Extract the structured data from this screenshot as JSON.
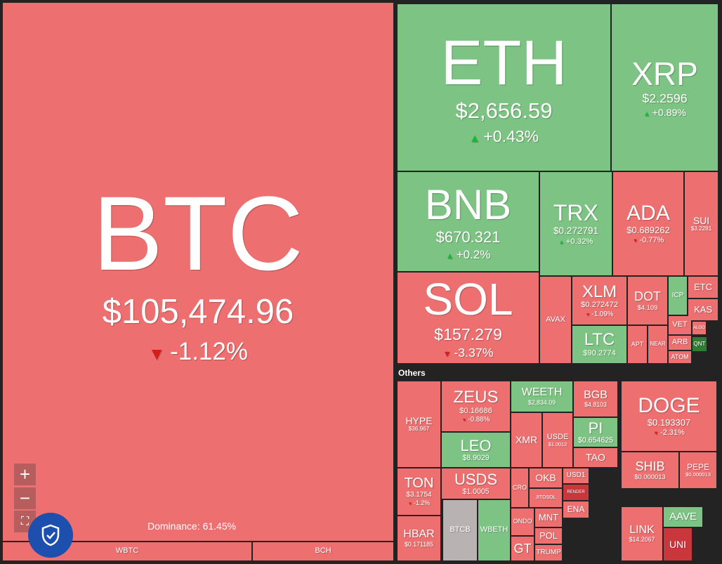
{
  "heatmap": {
    "tiles": [
      {
        "symbol": "BTC",
        "price": "$105,474.96",
        "change": "-1.12%",
        "color": "#ed6f6f"
      },
      {
        "symbol": "ETH",
        "price": "$2,656.59",
        "change": "+0.43%",
        "color": "#7dc383"
      },
      {
        "symbol": "XRP",
        "price": "$2.2596",
        "change": "+0.89%",
        "color": "#7dc383"
      },
      {
        "symbol": "BNB",
        "price": "$670.321",
        "change": "+0.2%",
        "color": "#7dc383"
      },
      {
        "symbol": "TRX",
        "price": "$0.272791",
        "change": "+0.32%",
        "color": "#7dc383"
      },
      {
        "symbol": "ADA",
        "price": "$0.689262",
        "change": "-0.77%",
        "color": "#ed6f6f"
      },
      {
        "symbol": "SUI",
        "price": "$3.2281",
        "color": "#ed6f6f"
      },
      {
        "symbol": "SOL",
        "price": "$157.279",
        "change": "-3.37%",
        "color": "#ed6f6f"
      },
      {
        "symbol": "AVAX",
        "color": "#ed6f6f"
      },
      {
        "symbol": "XLM",
        "price": "$0.272472",
        "change": "-1.09%",
        "color": "#ed6f6f"
      },
      {
        "symbol": "LTC",
        "price": "$90.2774",
        "color": "#7dc383"
      },
      {
        "symbol": "DOT",
        "price": "$4.109",
        "color": "#ed6f6f"
      },
      {
        "symbol": "ICP",
        "color": "#7dc383"
      },
      {
        "symbol": "ETC",
        "color": "#ed6f6f"
      },
      {
        "symbol": "KAS",
        "color": "#ed6f6f"
      },
      {
        "symbol": "APT",
        "color": "#ed6f6f"
      },
      {
        "symbol": "NEAR",
        "color": "#ed6f6f"
      },
      {
        "symbol": "VET",
        "color": "#ed6f6f"
      },
      {
        "symbol": "ARB",
        "color": "#ed6f6f"
      },
      {
        "symbol": "ATOM",
        "color": "#ed6f6f"
      },
      {
        "symbol": "ALGO",
        "color": "#ed6f6f"
      },
      {
        "symbol": "QNT",
        "color": "#2e7d32"
      },
      {
        "symbol": "HYPE",
        "price": "$36.967",
        "color": "#ed6f6f"
      },
      {
        "symbol": "ZEUS",
        "price": "$0.16686",
        "change": "-0.88%",
        "color": "#ed6f6f"
      },
      {
        "symbol": "LEO",
        "price": "$8.9029",
        "color": "#7dc383"
      },
      {
        "symbol": "WEETH",
        "price": "$2,834.09",
        "color": "#7dc383"
      },
      {
        "symbol": "BGB",
        "price": "$4.8103",
        "color": "#ed6f6f"
      },
      {
        "symbol": "XMR",
        "color": "#ed6f6f"
      },
      {
        "symbol": "USDE",
        "price": "$1.0012",
        "color": "#ed6f6f"
      },
      {
        "symbol": "PI",
        "price": "$0.654625",
        "color": "#7dc383"
      },
      {
        "symbol": "TAO",
        "color": "#ed6f6f"
      },
      {
        "symbol": "DOGE",
        "price": "$0.193307",
        "change": "-2.31%",
        "color": "#ed6f6f"
      },
      {
        "symbol": "SHIB",
        "price": "$0.000013",
        "color": "#ed6f6f"
      },
      {
        "symbol": "PEPE",
        "price": "$0.000013",
        "color": "#ed6f6f"
      },
      {
        "symbol": "TON",
        "price": "$3.1754",
        "change": "-1.2%",
        "color": "#ed6f6f"
      },
      {
        "symbol": "USDS",
        "price": "$1.0005",
        "color": "#ed6f6f"
      },
      {
        "symbol": "BTCB",
        "color": "#b9b2b2"
      },
      {
        "symbol": "WBETH",
        "color": "#7dc383"
      },
      {
        "symbol": "HBAR",
        "price": "$0.171185",
        "color": "#ed6f6f"
      },
      {
        "symbol": "CRO",
        "color": "#ed6f6f"
      },
      {
        "symbol": "OKB",
        "color": "#ed6f6f"
      },
      {
        "symbol": "USD1",
        "color": "#ed6f6f"
      },
      {
        "symbol": "JITOSOL",
        "color": "#ed6f6f"
      },
      {
        "symbol": "RENDER",
        "color": "#c9373d"
      },
      {
        "symbol": "ENA",
        "color": "#ed6f6f"
      },
      {
        "symbol": "ONDO",
        "color": "#ed6f6f"
      },
      {
        "symbol": "MNT",
        "color": "#ed6f6f"
      },
      {
        "symbol": "GT",
        "color": "#ed6f6f"
      },
      {
        "symbol": "POL",
        "color": "#ed6f6f"
      },
      {
        "symbol": "TRUMP",
        "color": "#ed6f6f"
      },
      {
        "symbol": "LINK",
        "price": "$14.2067",
        "color": "#ed6f6f"
      },
      {
        "symbol": "AAVE",
        "color": "#7dc383"
      },
      {
        "symbol": "UNI",
        "color": "#c9373d"
      },
      {
        "symbol": "WBTC",
        "color": "#ed6f6f"
      },
      {
        "symbol": "BCH",
        "color": "#ed6f6f"
      }
    ],
    "others_label": "Others",
    "dominance": "Dominance: 61.45%"
  }
}
